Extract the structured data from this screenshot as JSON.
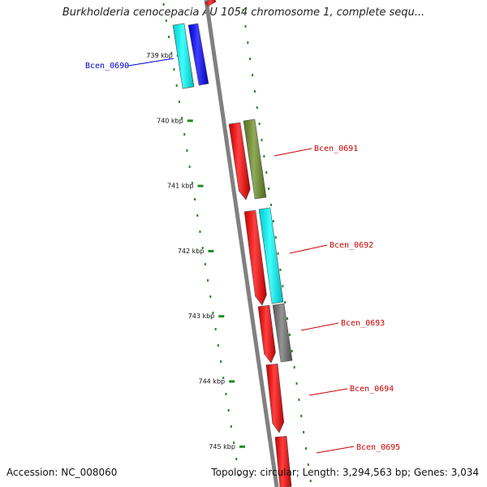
{
  "title": "Burkholderia cenocepacia AU 1054 chromosome 1, complete sequ...",
  "footer": {
    "accession": "Accession: NC_008060",
    "topology": "Topology: circular; Length: 3,294,563 bp; Genes: 3,034"
  },
  "colors": {
    "backbone": "#808080",
    "tick": "#228B22",
    "red": "#ff0000",
    "cyan": "#00ffff",
    "blue": "#0000ff",
    "olive": "#6b8e23",
    "gray": "#707070",
    "label_red": "#cc0000",
    "label_blue": "#0000cc"
  },
  "ticks": [
    {
      "label": "739 kbp",
      "kbp": 739
    },
    {
      "label": "740 kbp",
      "kbp": 740
    },
    {
      "label": "741 kbp",
      "kbp": 741
    },
    {
      "label": "742 kbp",
      "kbp": 742
    },
    {
      "label": "743 kbp",
      "kbp": 743
    },
    {
      "label": "744 kbp",
      "kbp": 744
    },
    {
      "label": "745 kbp",
      "kbp": 745
    }
  ],
  "genes": [
    {
      "label": "Bcen_0690",
      "color": "blue"
    },
    {
      "label": "Bcen_0691",
      "color": "red"
    },
    {
      "label": "Bcen_0692",
      "color": "red"
    },
    {
      "label": "Bcen_0693",
      "color": "red"
    },
    {
      "label": "Bcen_0694",
      "color": "red"
    },
    {
      "label": "Bcen_0695",
      "color": "red"
    }
  ]
}
